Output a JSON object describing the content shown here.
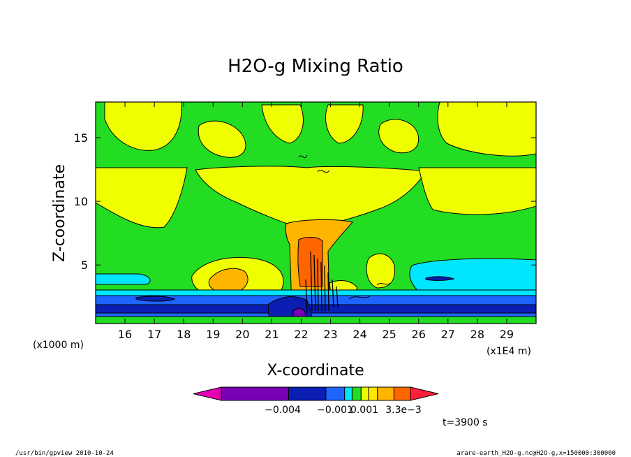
{
  "chart_data": {
    "type": "heatmap",
    "title": "H2O-g Mixing Ratio",
    "xlabel": "X-coordinate",
    "ylabel": "Z-coordinate",
    "x_unit_label": "(x1E4 m)",
    "y_unit_label": "(x1000 m)",
    "x_ticks": [
      "16",
      "17",
      "18",
      "19",
      "20",
      "21",
      "22",
      "23",
      "24",
      "25",
      "26",
      "27",
      "28",
      "29"
    ],
    "y_ticks": [
      "5",
      "10",
      "15"
    ],
    "xlim": [
      15,
      30
    ],
    "ylim": [
      0.4,
      17.8
    ],
    "time_label": "t=3900 s",
    "colorbar": {
      "tick_labels": [
        "−0.004",
        "−0.001",
        "0.001",
        "3.3e−3"
      ],
      "colors": [
        "#e600b4",
        "#7800b4",
        "#0a1eb4",
        "#1e64ff",
        "#00e6ff",
        "#22dd22",
        "#f0ff00",
        "#ffe600",
        "#ffb400",
        "#ff6600",
        "#ff1e3c"
      ]
    },
    "colors": {
      "background_field": "#22dd22",
      "contour_line": "#000000"
    }
  },
  "footer": {
    "left": "/usr/bin/gpview  2010-10-24",
    "right": "arare-earth_H2O-g.nc@H2O-g,x=150000:300000"
  }
}
